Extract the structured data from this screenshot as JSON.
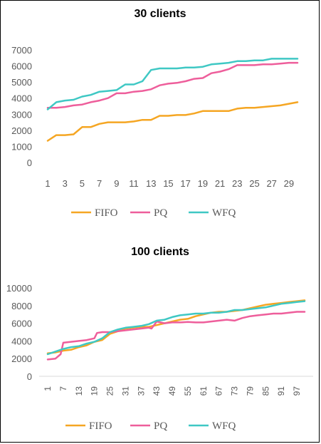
{
  "chart_data": [
    {
      "type": "line",
      "title": "30 clients",
      "xlabel": "",
      "ylabel": "",
      "x": [
        1,
        2,
        3,
        4,
        5,
        6,
        7,
        8,
        9,
        10,
        11,
        12,
        13,
        14,
        15,
        16,
        17,
        18,
        19,
        20,
        21,
        22,
        23,
        24,
        25,
        26,
        27,
        28,
        29,
        30
      ],
      "x_tick_labels": [
        "1",
        "3",
        "5",
        "7",
        "9",
        "11",
        "13",
        "15",
        "17",
        "19",
        "21",
        "23",
        "25",
        "27",
        "29"
      ],
      "ylim": [
        0,
        7000
      ],
      "y_ticks": [
        0,
        1000,
        2000,
        3000,
        4000,
        5000,
        6000,
        7000
      ],
      "grid": false,
      "legend": "bottom",
      "series": [
        {
          "name": "FIFO",
          "color": "#f5a623",
          "values": [
            1350,
            1700,
            1700,
            1750,
            2200,
            2200,
            2400,
            2500,
            2500,
            2500,
            2550,
            2650,
            2650,
            2900,
            2900,
            2950,
            2950,
            3050,
            3200,
            3200,
            3200,
            3200,
            3350,
            3400,
            3400,
            3450,
            3500,
            3550,
            3650,
            3750
          ]
        },
        {
          "name": "PQ",
          "color": "#ee5e9b",
          "values": [
            3400,
            3400,
            3450,
            3550,
            3600,
            3750,
            3850,
            4000,
            4300,
            4300,
            4400,
            4450,
            4550,
            4800,
            4900,
            4950,
            5050,
            5200,
            5250,
            5550,
            5650,
            5800,
            6050,
            6050,
            6050,
            6100,
            6100,
            6150,
            6200,
            6200
          ]
        },
        {
          "name": "WFQ",
          "color": "#3fc8c4",
          "values": [
            3300,
            3750,
            3850,
            3900,
            4100,
            4200,
            4400,
            4450,
            4500,
            4850,
            4850,
            5050,
            5750,
            5850,
            5850,
            5850,
            5900,
            5900,
            5950,
            6100,
            6150,
            6200,
            6300,
            6300,
            6350,
            6350,
            6450,
            6450,
            6450,
            6450
          ]
        }
      ]
    },
    {
      "type": "line",
      "title": "100 clients",
      "xlabel": "",
      "ylabel": "",
      "x_tick_labels": [
        "1",
        "7",
        "13",
        "19",
        "25",
        "31",
        "37",
        "43",
        "49",
        "55",
        "61",
        "67",
        "73",
        "79",
        "85",
        "91",
        "97"
      ],
      "x_range": [
        1,
        100
      ],
      "ylim": [
        0,
        10000
      ],
      "y_ticks": [
        0,
        2000,
        4000,
        6000,
        8000,
        10000
      ],
      "grid": false,
      "legend": "bottom",
      "series": [
        {
          "name": "FIFO",
          "color": "#f5a623",
          "x": [
            1,
            4,
            7,
            10,
            13,
            16,
            19,
            22,
            25,
            28,
            31,
            34,
            37,
            40,
            43,
            46,
            49,
            52,
            55,
            58,
            61,
            64,
            67,
            70,
            73,
            76,
            79,
            82,
            85,
            88,
            91,
            94,
            97,
            100
          ],
          "values": [
            2600,
            2700,
            2900,
            3000,
            3300,
            3500,
            3900,
            4100,
            4800,
            5100,
            5400,
            5500,
            5600,
            5600,
            5800,
            6000,
            6200,
            6400,
            6500,
            6800,
            7000,
            7200,
            7300,
            7300,
            7400,
            7500,
            7700,
            7900,
            8100,
            8200,
            8300,
            8400,
            8500,
            8600
          ]
        },
        {
          "name": "PQ",
          "color": "#ee5e9b",
          "x": [
            1,
            4,
            6,
            7,
            10,
            13,
            16,
            19,
            20,
            22,
            25,
            28,
            31,
            34,
            37,
            40,
            41,
            43,
            46,
            49,
            52,
            55,
            58,
            61,
            64,
            67,
            70,
            73,
            76,
            79,
            82,
            85,
            88,
            91,
            94,
            97,
            100
          ],
          "values": [
            1900,
            2000,
            2500,
            3800,
            3900,
            4000,
            4100,
            4300,
            4900,
            5000,
            5000,
            5100,
            5200,
            5300,
            5400,
            5500,
            5400,
            6200,
            6000,
            6100,
            6100,
            6150,
            6100,
            6100,
            6200,
            6300,
            6400,
            6300,
            6600,
            6800,
            6900,
            7000,
            7100,
            7100,
            7200,
            7300,
            7300
          ]
        },
        {
          "name": "WFQ",
          "color": "#3fc8c4",
          "x": [
            1,
            4,
            7,
            10,
            13,
            16,
            19,
            22,
            25,
            28,
            31,
            34,
            37,
            40,
            43,
            46,
            49,
            52,
            55,
            58,
            61,
            64,
            67,
            70,
            73,
            76,
            79,
            82,
            85,
            88,
            91,
            94,
            97,
            100
          ],
          "values": [
            2500,
            2800,
            3100,
            3300,
            3400,
            3700,
            3900,
            4300,
            5000,
            5300,
            5500,
            5600,
            5700,
            5900,
            6300,
            6400,
            6700,
            6900,
            7000,
            7100,
            7100,
            7200,
            7200,
            7300,
            7500,
            7500,
            7600,
            7700,
            7800,
            8000,
            8200,
            8300,
            8400,
            8500
          ]
        }
      ]
    }
  ]
}
